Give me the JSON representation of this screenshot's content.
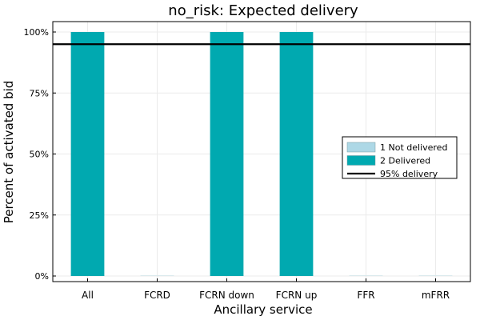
{
  "chart_data": {
    "type": "bar",
    "stacked": true,
    "title": "no_risk: Expected delivery",
    "xlabel": "Ancillary service",
    "ylabel": "Percent of activated bid",
    "categories": [
      "All",
      "FCRD",
      "FCRN down",
      "FCRN up",
      "FFR",
      "mFRR"
    ],
    "ylim": [
      0,
      100
    ],
    "yticks": [
      0,
      25,
      50,
      75,
      100
    ],
    "ytick_labels": [
      "0%",
      "25%",
      "50%",
      "75%",
      "100%"
    ],
    "grid": true,
    "legend_position": "right",
    "series": [
      {
        "name": "1 Not delivered",
        "color": "#add8e6",
        "values": [
          0,
          0,
          0,
          0,
          0,
          0
        ]
      },
      {
        "name": "2 Delivered",
        "color": "#00a9b0",
        "values": [
          100,
          0,
          100,
          100,
          0,
          0
        ]
      }
    ],
    "reference_line": {
      "name": "95% delivery",
      "value": 95,
      "color": "#000000"
    }
  }
}
